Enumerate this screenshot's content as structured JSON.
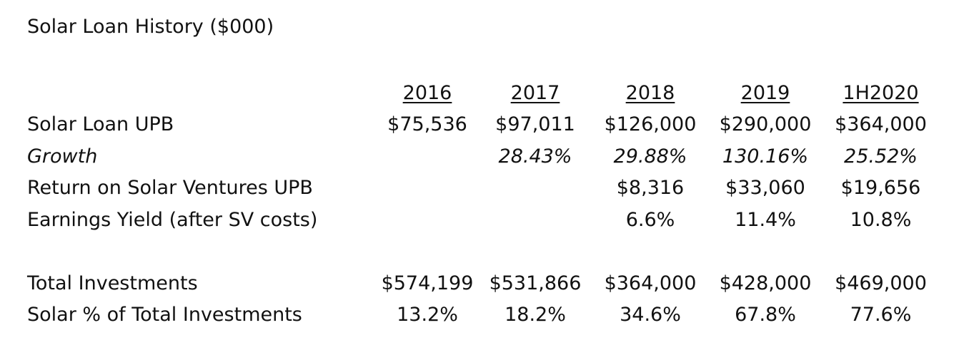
{
  "title": "Solar Loan History ($000)",
  "columns": [
    "2016",
    "2017",
    "2018",
    "2019",
    "1H2020"
  ],
  "rows": [
    {
      "label": "Solar Loan UPB",
      "italic": false,
      "values": [
        "$75,536",
        "$97,011",
        "$126,000",
        "$290,000",
        "$364,000"
      ]
    },
    {
      "label": "Growth",
      "italic": true,
      "values": [
        "",
        "28.43%",
        "29.88%",
        "130.16%",
        "25.52%"
      ]
    },
    {
      "label": "Return on Solar Ventures UPB",
      "italic": false,
      "values": [
        "",
        "",
        "$8,316",
        "$33,060",
        "$19,656"
      ]
    },
    {
      "label": "Earnings Yield (after SV costs)",
      "italic": false,
      "values": [
        "",
        "",
        "6.6%",
        "11.4%",
        "10.8%"
      ]
    },
    {
      "label": "",
      "italic": false,
      "values": [
        "",
        "",
        "",
        "",
        ""
      ]
    },
    {
      "label": "Total Investments",
      "italic": false,
      "values": [
        "$574,199",
        "$531,866",
        "$364,000",
        "$428,000",
        "$469,000"
      ]
    },
    {
      "label": "Solar % of Total Investments",
      "italic": false,
      "values": [
        "13.2%",
        "18.2%",
        "34.6%",
        "67.8%",
        "77.6%"
      ]
    }
  ]
}
